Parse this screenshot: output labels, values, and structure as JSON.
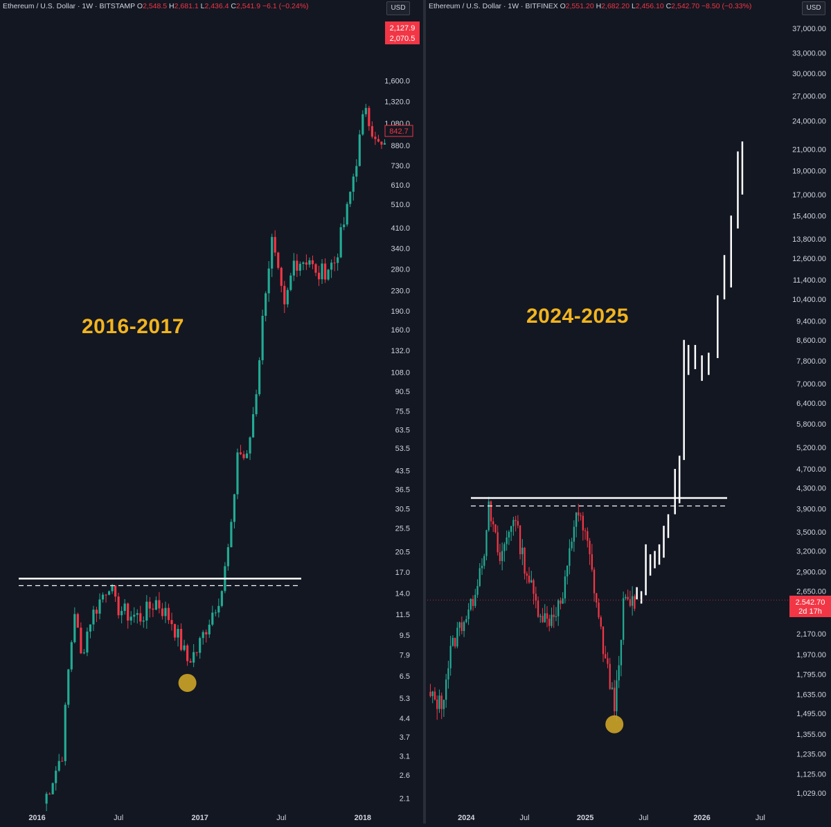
{
  "chart_data": [
    {
      "type": "candlestick",
      "title": "Ethereum / U.S. Dollar · 1W · BITSTAMP",
      "ohlc": {
        "open_label": "O",
        "open": "2,548.5",
        "high_label": "H",
        "high": "2,681.1",
        "low_label": "L",
        "low": "2,436.4",
        "close_label": "C",
        "close": "2,541.9",
        "change": "−6.1 (−0.24%)"
      },
      "currency": "USD",
      "annotation": "2016-2017",
      "y_scale": "log",
      "ylim": [
        1.9,
        2300
      ],
      "y_ticks": [
        "1,600.0",
        "1,320.0",
        "1,080.0",
        "880.0",
        "730.0",
        "610.0",
        "510.0",
        "410.0",
        "340.0",
        "280.0",
        "230.0",
        "190.0",
        "160.0",
        "132.0",
        "108.0",
        "90.5",
        "75.5",
        "63.5",
        "53.5",
        "43.5",
        "36.5",
        "30.5",
        "25.5",
        "20.5",
        "17.0",
        "14.0",
        "11.5",
        "9.5",
        "7.9",
        "6.5",
        "5.3",
        "4.4",
        "3.7",
        "3.1",
        "2.6",
        "2.1"
      ],
      "x_ticks": [
        "2016",
        "Jul",
        "2017",
        "Jul",
        "2018"
      ],
      "price_tags": [
        {
          "text": "2,127.9",
          "color": "#f23645"
        },
        {
          "text": "2,070.5",
          "color": "#f23645"
        },
        {
          "text": "842.7",
          "color": "#f23645",
          "style": "outline"
        }
      ],
      "resistance_price": 16.0,
      "dashed_price": 15.0,
      "circle_price": 6.1,
      "circle_date": "2016-12-05",
      "x_start": "2015-12-14",
      "x_end": "2018-02-26",
      "anchors": [
        [
          "2016-01-18",
          2.0
        ],
        [
          "2016-02-29",
          3.2
        ],
        [
          "2016-03-14",
          6.8
        ],
        [
          "2016-03-28",
          12.0
        ],
        [
          "2016-04-11",
          7.8
        ],
        [
          "2016-05-02",
          11.0
        ],
        [
          "2016-06-13",
          15.5
        ],
        [
          "2016-06-27",
          12.5
        ],
        [
          "2016-07-25",
          11.5
        ],
        [
          "2016-08-22",
          11.2
        ],
        [
          "2016-09-26",
          13.0
        ],
        [
          "2016-10-31",
          10.8
        ],
        [
          "2016-12-05",
          7.5
        ],
        [
          "2016-12-26",
          8.2
        ],
        [
          "2017-01-23",
          11.0
        ],
        [
          "2017-02-20",
          14.5
        ],
        [
          "2017-03-13",
          25.0
        ],
        [
          "2017-03-27",
          52.0
        ],
        [
          "2017-04-17",
          48.0
        ],
        [
          "2017-05-08",
          92.0
        ],
        [
          "2017-05-29",
          240.0
        ],
        [
          "2017-06-12",
          360.0
        ],
        [
          "2017-07-10",
          190.0
        ],
        [
          "2017-07-31",
          300.0
        ],
        [
          "2017-09-04",
          310.0
        ],
        [
          "2017-09-18",
          260.0
        ],
        [
          "2017-10-30",
          300.0
        ],
        [
          "2017-11-27",
          480.0
        ],
        [
          "2017-12-18",
          780.0
        ],
        [
          "2018-01-08",
          1300.0
        ],
        [
          "2018-01-29",
          900.0
        ],
        [
          "2018-02-19",
          843.0
        ]
      ]
    },
    {
      "type": "candlestick",
      "title": "Ethereum / U.S. Dollar · 1W · BITFINEX",
      "ohlc": {
        "open_label": "O",
        "open": "2,551.20",
        "high_label": "H",
        "high": "2,682.20",
        "low_label": "L",
        "low": "2,456.10",
        "close_label": "C",
        "close": "2,542.70",
        "change": "−8.50 (−0.33%)"
      },
      "currency": "USD",
      "annotation": "2024-2025",
      "y_scale": "log",
      "ylim": [
        980,
        39000
      ],
      "y_ticks": [
        "37,000.00",
        "33,000.00",
        "30,000.00",
        "27,000.00",
        "24,000.00",
        "21,000.00",
        "19,000.00",
        "17,000.00",
        "15,400.00",
        "13,800.00",
        "12,600.00",
        "11,400.00",
        "10,400.00",
        "9,400.00",
        "8,600.00",
        "7,800.00",
        "7,000.00",
        "6,400.00",
        "5,800.00",
        "5,200.00",
        "4,700.00",
        "4,300.00",
        "3,900.00",
        "3,500.00",
        "3,200.00",
        "2,900.00",
        "2,650.00",
        "2,170.00",
        "1,970.00",
        "1,795.00",
        "1,635.00",
        "1,495.00",
        "1,355.00",
        "1,235.00",
        "1,125.00",
        "1,029.00"
      ],
      "x_ticks": [
        "2024",
        "Jul",
        "2025",
        "Jul",
        "2026",
        "Jul"
      ],
      "price_tags": [
        {
          "text": "2,542.70",
          "color": "#f23645"
        },
        {
          "text": "2d 17h",
          "color": "#f23645"
        }
      ],
      "resistance_price": 4100,
      "dashed_price": 3950,
      "circle_price": 1420,
      "circle_date": "2025-04-07",
      "x_start": "2023-08-28",
      "x_end": "2026-10-05",
      "anchors": [
        [
          "2023-09-04",
          1620
        ],
        [
          "2023-10-16",
          1560
        ],
        [
          "2023-11-13",
          2000
        ],
        [
          "2023-12-11",
          2250
        ],
        [
          "2024-01-15",
          2450
        ],
        [
          "2024-03-04",
          3400
        ],
        [
          "2024-03-11",
          3900
        ],
        [
          "2024-04-15",
          3050
        ],
        [
          "2024-05-27",
          3800
        ],
        [
          "2024-07-01",
          3000
        ],
        [
          "2024-08-05",
          2500
        ],
        [
          "2024-09-09",
          2300
        ],
        [
          "2024-10-28",
          2550
        ],
        [
          "2024-12-09",
          3900
        ],
        [
          "2025-01-13",
          3300
        ],
        [
          "2025-02-03",
          2700
        ],
        [
          "2025-03-10",
          1900
        ],
        [
          "2025-04-07",
          1580
        ],
        [
          "2025-04-21",
          1800
        ],
        [
          "2025-05-05",
          2500
        ],
        [
          "2025-06-09",
          2542.7
        ]
      ],
      "projection": [
        [
          "2025-06-16",
          2550,
          2700
        ],
        [
          "2025-06-30",
          2500,
          2650
        ],
        [
          "2025-07-14",
          2600,
          3300
        ],
        [
          "2025-07-28",
          2850,
          3150
        ],
        [
          "2025-08-11",
          2950,
          3200
        ],
        [
          "2025-08-25",
          3000,
          3300
        ],
        [
          "2025-09-08",
          3100,
          3600
        ],
        [
          "2025-09-22",
          3400,
          3800
        ],
        [
          "2025-10-13",
          3800,
          4700
        ],
        [
          "2025-10-27",
          4000,
          5000
        ],
        [
          "2025-11-10",
          4900,
          8600
        ],
        [
          "2025-11-24",
          7300,
          8400
        ],
        [
          "2025-12-15",
          7500,
          8400
        ],
        [
          "2026-01-05",
          7100,
          8000
        ],
        [
          "2026-01-26",
          7300,
          8100
        ],
        [
          "2026-02-23",
          7900,
          10600
        ],
        [
          "2026-03-16",
          10400,
          12800
        ],
        [
          "2026-04-06",
          11000,
          15400
        ],
        [
          "2026-04-27",
          14500,
          20800
        ],
        [
          "2026-05-11",
          17000,
          21800
        ]
      ]
    }
  ]
}
